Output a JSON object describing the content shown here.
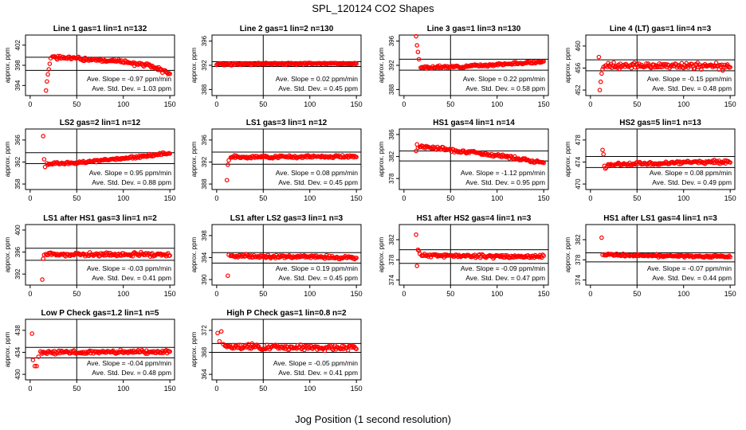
{
  "title": "SPL_120124  CO2 Shapes",
  "xlabel": "Jog Position (1 second resolution)",
  "ylabel": "approx. ppm",
  "colors": {
    "points": "#ff0000",
    "axes": "#000000"
  },
  "chart_data": [
    {
      "type": "scatter",
      "title": "Line 1 gas=1 lin=1 n=132",
      "xlim": [
        0,
        150
      ],
      "xticks": [
        0,
        50,
        100,
        150
      ],
      "ylim": [
        392,
        404
      ],
      "yticks": [
        394,
        398,
        402
      ],
      "hlines": [
        399.6,
        397.0
      ],
      "vline": 50,
      "start": [
        [
          17,
          393.0
        ],
        [
          18,
          394.8
        ],
        [
          19,
          396.2
        ],
        [
          20,
          397.2
        ],
        [
          21,
          398.3
        ],
        [
          22,
          399.4
        ]
      ],
      "trend": [
        [
          24,
          399.6
        ],
        [
          60,
          399.2
        ],
        [
          100,
          398.7
        ],
        [
          130,
          397.9
        ],
        [
          150,
          396.4
        ]
      ],
      "noise": 0.25,
      "seed": 1,
      "slope": "Ave. Slope = -0.97 ppm/min",
      "stddev": "Ave. Std. Dev. = 1.03  ppm"
    },
    {
      "type": "scatter",
      "title": "Line 2 gas=1 lin=2 n=130",
      "xlim": [
        0,
        150
      ],
      "xticks": [
        0,
        50,
        100,
        150
      ],
      "ylim": [
        387,
        397
      ],
      "yticks": [
        388,
        392,
        396
      ],
      "hlines": [
        392.6,
        391.8
      ],
      "vline": 50,
      "start": [],
      "trend": [
        [
          0,
          392.2
        ],
        [
          150,
          392.3
        ]
      ],
      "noise": 0.1,
      "seed": 2,
      "slope": "Ave. Slope = 0.02 ppm/min",
      "stddev": "Ave. Std. Dev. = 0.45  ppm"
    },
    {
      "type": "scatter",
      "title": "Line 3 gas=1 lin=3 n=130",
      "xlim": [
        0,
        150
      ],
      "xticks": [
        0,
        50,
        100,
        150
      ],
      "ylim": [
        387,
        397
      ],
      "yticks": [
        388,
        392,
        396
      ],
      "hlines": [
        393.0,
        391.2
      ],
      "vline": 50,
      "start": [
        [
          13,
          396.8
        ],
        [
          14,
          395.3
        ],
        [
          15,
          394.2
        ],
        [
          16,
          393.0
        ]
      ],
      "trend": [
        [
          18,
          391.6
        ],
        [
          60,
          391.8
        ],
        [
          120,
          392.3
        ],
        [
          150,
          392.6
        ]
      ],
      "noise": 0.12,
      "seed": 3,
      "slope": "Ave. Slope = 0.22 ppm/min",
      "stddev": "Ave. Std. Dev. = 0.58  ppm"
    },
    {
      "type": "scatter",
      "title": "Line 4 (LT) gas=1 lin=4 n=3",
      "xlim": [
        0,
        150
      ],
      "xticks": [
        0,
        50,
        100,
        150
      ],
      "ylim": [
        451,
        462
      ],
      "yticks": [
        452,
        456,
        460
      ],
      "hlines": [
        457.5,
        455.5
      ],
      "vline": 50,
      "start": [
        [
          9,
          458.0
        ],
        [
          10,
          452.0
        ],
        [
          11,
          453.5
        ],
        [
          12,
          455.0
        ],
        [
          13,
          455.8
        ],
        [
          14,
          456.2
        ]
      ],
      "trend": [
        [
          16,
          456.5
        ],
        [
          150,
          456.3
        ]
      ],
      "noise": 0.35,
      "seed": 4,
      "slope": "Ave. Slope = -0.15 ppm/min",
      "stddev": "Ave. Std. Dev. = 0.48  ppm"
    },
    {
      "type": "scatter",
      "title": "LS2 gas=2 lin=1 n=12",
      "xlim": [
        0,
        150
      ],
      "xticks": [
        0,
        50,
        100,
        150
      ],
      "ylim": [
        357,
        368
      ],
      "yticks": [
        358,
        362,
        366
      ],
      "hlines": [
        363.7,
        361.7
      ],
      "vline": 50,
      "start": [
        [
          14,
          366.7
        ],
        [
          15,
          362.5
        ],
        [
          16,
          361.1
        ]
      ],
      "trend": [
        [
          18,
          361.6
        ],
        [
          60,
          362.0
        ],
        [
          110,
          362.8
        ],
        [
          150,
          363.6
        ]
      ],
      "noise": 0.15,
      "seed": 5,
      "slope": "Ave. Slope = 0.95 ppm/min",
      "stddev": "Ave. Std. Dev. = 0.88  ppm"
    },
    {
      "type": "scatter",
      "title": "LS1 gas=3 lin=1 n=12",
      "xlim": [
        0,
        150
      ],
      "xticks": [
        0,
        50,
        100,
        150
      ],
      "ylim": [
        387,
        398
      ],
      "yticks": [
        388,
        392,
        396
      ],
      "hlines": [
        393.8,
        391.6
      ],
      "vline": 50,
      "start": [
        [
          11,
          388.7
        ],
        [
          12,
          391.5
        ],
        [
          13,
          392.3
        ]
      ],
      "trend": [
        [
          15,
          392.9
        ],
        [
          150,
          393.0
        ]
      ],
      "noise": 0.15,
      "seed": 6,
      "slope": "Ave. Slope = 0.08 ppm/min",
      "stddev": "Ave. Std. Dev. = 0.45  ppm"
    },
    {
      "type": "scatter",
      "title": "HS1 gas=4 lin=1 n=14",
      "xlim": [
        0,
        150
      ],
      "xticks": [
        0,
        50,
        100,
        150
      ],
      "ylim": [
        376,
        387
      ],
      "yticks": [
        378,
        382,
        386
      ],
      "hlines": [
        383.0,
        381.2
      ],
      "vline": 50,
      "start": [
        [
          13,
          383.0
        ],
        [
          14,
          384.2
        ],
        [
          15,
          383.6
        ]
      ],
      "trend": [
        [
          17,
          383.9
        ],
        [
          60,
          383.0
        ],
        [
          110,
          382.0
        ],
        [
          150,
          380.9
        ]
      ],
      "noise": 0.18,
      "seed": 7,
      "slope": "Ave. Slope = -1.12 ppm/min",
      "stddev": "Ave. Std. Dev. = 0.95  ppm"
    },
    {
      "type": "scatter",
      "title": "HS2 gas=5 lin=1 n=13",
      "xlim": [
        0,
        150
      ],
      "xticks": [
        0,
        50,
        100,
        150
      ],
      "ylim": [
        469,
        480
      ],
      "yticks": [
        470,
        474,
        478
      ],
      "hlines": [
        475.0,
        473.0
      ],
      "vline": 50,
      "start": [
        [
          13,
          476.2
        ],
        [
          14,
          475.4
        ],
        [
          15,
          473.3
        ],
        [
          16,
          472.8
        ],
        [
          17,
          473.0
        ]
      ],
      "trend": [
        [
          19,
          473.5
        ],
        [
          150,
          474.1
        ]
      ],
      "noise": 0.18,
      "seed": 8,
      "slope": "Ave. Slope = 0.08 ppm/min",
      "stddev": "Ave. Std. Dev. = 0.49  ppm"
    },
    {
      "type": "scatter",
      "title": "LS1 after HS1 gas=3 lin=1 n=2",
      "xlim": [
        0,
        150
      ],
      "xticks": [
        0,
        50,
        100,
        150
      ],
      "ylim": [
        390,
        401
      ],
      "yticks": [
        392,
        396,
        400
      ],
      "hlines": [
        396.7,
        394.5
      ],
      "vline": 50,
      "start": [
        [
          13,
          391.0
        ],
        [
          14,
          394.8
        ],
        [
          15,
          395.5
        ]
      ],
      "trend": [
        [
          17,
          395.6
        ],
        [
          150,
          395.5
        ]
      ],
      "noise": 0.22,
      "seed": 9,
      "slope": "Ave. Slope = -0.03 ppm/min",
      "stddev": "Ave. Std. Dev. = 0.41  ppm"
    },
    {
      "type": "scatter",
      "title": "LS1 after LS2 gas=3 lin=1 n=3",
      "xlim": [
        0,
        150
      ],
      "xticks": [
        0,
        50,
        100,
        150
      ],
      "ylim": [
        389,
        400
      ],
      "yticks": [
        390,
        394,
        398
      ],
      "hlines": [
        394.9,
        393.0
      ],
      "vline": 50,
      "start": [
        [
          12,
          390.7
        ],
        [
          13,
          394.5
        ]
      ],
      "trend": [
        [
          15,
          394.3
        ],
        [
          150,
          394.0
        ]
      ],
      "noise": 0.18,
      "seed": 10,
      "slope": "Ave. Slope = 0.19 ppm/min",
      "stddev": "Ave. Std. Dev. = 0.45  ppm"
    },
    {
      "type": "scatter",
      "title": "HS1 after HS2 gas=4 lin=1 n=3",
      "xlim": [
        0,
        150
      ],
      "xticks": [
        0,
        50,
        100,
        150
      ],
      "ylim": [
        373,
        385
      ],
      "yticks": [
        374,
        378,
        382
      ],
      "hlines": [
        380.0,
        377.3
      ],
      "vline": 50,
      "start": [
        [
          13,
          383.0
        ],
        [
          14,
          376.8
        ],
        [
          15,
          380.0
        ],
        [
          16,
          379.8
        ],
        [
          17,
          379.2
        ]
      ],
      "trend": [
        [
          19,
          378.9
        ],
        [
          150,
          378.6
        ]
      ],
      "noise": 0.2,
      "seed": 11,
      "slope": "Ave. Slope = -0.09 ppm/min",
      "stddev": "Ave. Std. Dev. = 0.47  ppm"
    },
    {
      "type": "scatter",
      "title": "HS1 after LS1 gas=4 lin=1 n=3",
      "xlim": [
        0,
        150
      ],
      "xticks": [
        0,
        50,
        100,
        150
      ],
      "ylim": [
        373,
        385
      ],
      "yticks": [
        374,
        378,
        382
      ],
      "hlines": [
        379.4,
        377.6
      ],
      "vline": 50,
      "start": [
        [
          12,
          382.4
        ],
        [
          13,
          379.0
        ]
      ],
      "trend": [
        [
          15,
          379.0
        ],
        [
          150,
          378.6
        ]
      ],
      "noise": 0.15,
      "seed": 12,
      "slope": "Ave. Slope = -0.07 ppm/min",
      "stddev": "Ave. Std. Dev. = 0.44  ppm"
    },
    {
      "type": "scatter",
      "title": "Low P Check gas=1.2 lin=1 n=5",
      "xlim": [
        0,
        150
      ],
      "xticks": [
        0,
        50,
        100,
        150
      ],
      "ylim": [
        429,
        440
      ],
      "yticks": [
        430,
        434,
        438
      ],
      "hlines": [
        434.9,
        433.0
      ],
      "vline": 50,
      "start": [
        [
          2,
          437.4
        ],
        [
          3,
          432.6
        ],
        [
          5,
          431.5
        ],
        [
          7,
          431.5
        ],
        [
          9,
          433.2
        ]
      ],
      "trend": [
        [
          11,
          434.0
        ],
        [
          150,
          434.1
        ]
      ],
      "noise": 0.2,
      "seed": 13,
      "slope": "Ave. Slope = -0.04 ppm/min",
      "stddev": "Ave. Std. Dev. = 0.48  ppm"
    },
    {
      "type": "scatter",
      "title": "High P Check gas=1 lin=0.8 n=2",
      "xlim": [
        0,
        150
      ],
      "xticks": [
        0,
        50,
        100,
        150
      ],
      "ylim": [
        363,
        374
      ],
      "yticks": [
        364,
        368,
        372
      ],
      "hlines": [
        369.6,
        368.0
      ],
      "vline": 50,
      "start": [
        [
          1,
          371.5
        ],
        [
          3,
          370.0
        ],
        [
          5,
          371.8
        ],
        [
          7,
          369.5
        ]
      ],
      "trend": [
        [
          9,
          369.0
        ],
        [
          150,
          368.8
        ]
      ],
      "noise": 0.3,
      "seed": 14,
      "slope": "Ave. Slope = -0.05 ppm/min",
      "stddev": "Ave. Std. Dev. = 0.41  ppm"
    }
  ]
}
